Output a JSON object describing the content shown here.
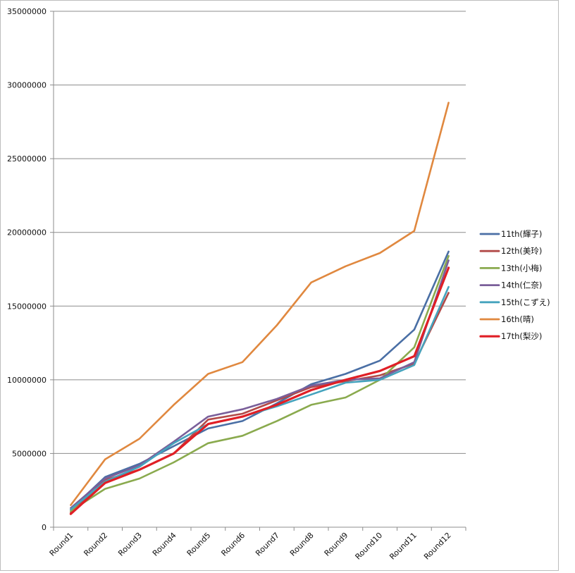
{
  "chart_data": {
    "type": "line",
    "title": "",
    "xlabel": "",
    "ylabel": "",
    "categories": [
      "Round1",
      "Round2",
      "Round3",
      "Round4",
      "Round5",
      "Round6",
      "Round7",
      "Round8",
      "Round9",
      "Round10",
      "Round11",
      "Round12"
    ],
    "ylim": [
      0,
      35000000
    ],
    "yticks": [
      "0",
      "5000000",
      "10000000",
      "15000000",
      "20000000",
      "25000000",
      "30000000",
      "35000000"
    ],
    "grid": true,
    "legend_position": "right",
    "series": [
      {
        "name": "11th(輝子)",
        "color": "#4a6fa5",
        "values": [
          1200000,
          3400000,
          4300000,
          5500000,
          6700000,
          7200000,
          8400000,
          9700000,
          10400000,
          11300000,
          13400000,
          18700000
        ]
      },
      {
        "name": "12th(美玲)",
        "color": "#b24a48",
        "values": [
          1000000,
          3200000,
          3900000,
          5000000,
          7300000,
          7700000,
          8600000,
          9500000,
          9900000,
          10300000,
          11100000,
          15900000
        ]
      },
      {
        "name": "13th(小梅)",
        "color": "#8aaa4e",
        "values": [
          1100000,
          2600000,
          3300000,
          4400000,
          5700000,
          6200000,
          7200000,
          8300000,
          8800000,
          10000000,
          12200000,
          18400000
        ]
      },
      {
        "name": "14th(仁奈)",
        "color": "#7a5f9a",
        "values": [
          1300000,
          3300000,
          4200000,
          5800000,
          7500000,
          8000000,
          8700000,
          9600000,
          10000000,
          10100000,
          11200000,
          18100000
        ]
      },
      {
        "name": "15th(こずえ)",
        "color": "#45a3bd",
        "values": [
          1200000,
          3100000,
          4100000,
          5700000,
          7000000,
          7500000,
          8200000,
          9000000,
          9800000,
          10000000,
          11000000,
          16300000
        ]
      },
      {
        "name": "16th(晴)",
        "color": "#e0883f",
        "values": [
          1500000,
          4600000,
          6000000,
          8300000,
          10400000,
          11200000,
          13700000,
          16600000,
          17700000,
          18600000,
          20100000,
          28800000
        ]
      },
      {
        "name": "17th(梨沙)",
        "color": "#e01f26",
        "values": [
          900000,
          3000000,
          3900000,
          5000000,
          7000000,
          7500000,
          8300000,
          9300000,
          10000000,
          10600000,
          11600000,
          17600000
        ]
      }
    ]
  }
}
